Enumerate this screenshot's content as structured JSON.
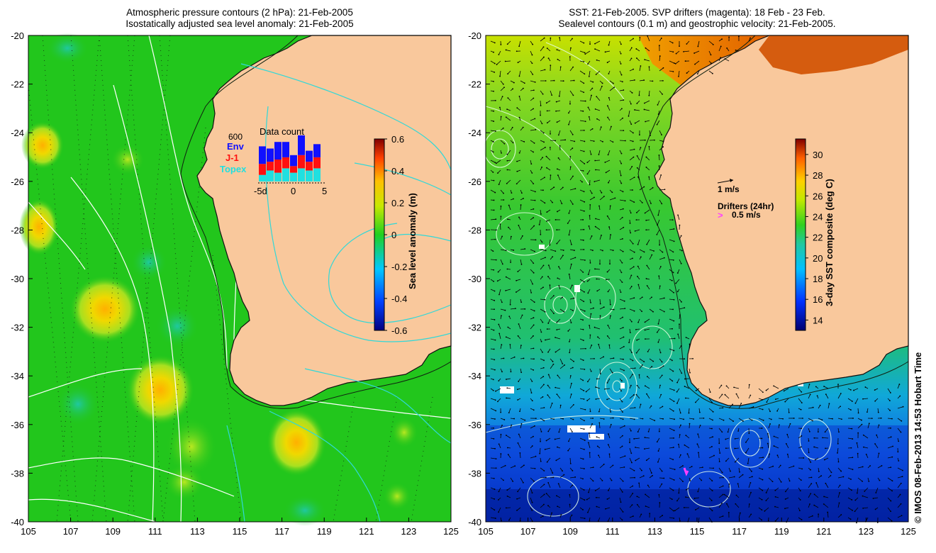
{
  "left_panel": {
    "title_line1": "Atmospheric pressure contours (2 hPa): 21-Feb-2005",
    "title_line2": "Isostatically adjusted sea level anomaly: 21-Feb-2005",
    "x_ticks": [
      "105",
      "107",
      "109",
      "111",
      "113",
      "115",
      "117",
      "119",
      "121",
      "123",
      "125"
    ],
    "y_ticks": [
      "-20",
      "-22",
      "-24",
      "-26",
      "-28",
      "-30",
      "-32",
      "-34",
      "-36",
      "-38",
      "-40"
    ],
    "colorbar": {
      "label": "Sea level anomaly (m)",
      "ticks": [
        "0.6",
        "0.4",
        "0.2",
        "0",
        "-0.2",
        "-0.4",
        "-0.6"
      ],
      "range": [
        -0.6,
        0.6
      ]
    },
    "data_count": {
      "title": "Data count",
      "ymax_label": "600",
      "legend": [
        {
          "name": "Env",
          "color": "#1010ff"
        },
        {
          "name": "J-1",
          "color": "#ff1010"
        },
        {
          "name": "Topex",
          "color": "#20e0e0"
        }
      ],
      "x_labels": [
        "-5d",
        "0",
        "5"
      ],
      "bars": [
        {
          "topex": 0.15,
          "j1": 0.25,
          "env": 0.4
        },
        {
          "topex": 0.25,
          "j1": 0.2,
          "env": 0.3
        },
        {
          "topex": 0.2,
          "j1": 0.3,
          "env": 0.4
        },
        {
          "topex": 0.3,
          "j1": 0.25,
          "env": 0.35
        },
        {
          "topex": 0.2,
          "j1": 0.15,
          "env": 0.25
        },
        {
          "topex": 0.3,
          "j1": 0.3,
          "env": 0.45
        },
        {
          "topex": 0.25,
          "j1": 0.2,
          "env": 0.25
        },
        {
          "topex": 0.3,
          "j1": 0.25,
          "env": 0.3
        }
      ]
    }
  },
  "right_panel": {
    "title_line1": "SST: 21-Feb-2005. SVP drifters (magenta): 18 Feb - 23 Feb.",
    "title_line2": "Sealevel contours (0.1 m) and geostrophic velocity: 21-Feb-2005.",
    "x_ticks": [
      "105",
      "107",
      "109",
      "111",
      "113",
      "115",
      "117",
      "119",
      "121",
      "123",
      "125"
    ],
    "y_ticks": [
      "-20",
      "-22",
      "-24",
      "-26",
      "-28",
      "-30",
      "-32",
      "-34",
      "-36",
      "-38",
      "-40"
    ],
    "colorbar": {
      "label": "3-day SST composite (deg C)",
      "ticks": [
        "30",
        "28",
        "26",
        "24",
        "22",
        "20",
        "18",
        "16",
        "14"
      ],
      "range": [
        13,
        31.5
      ]
    },
    "velocity_scale": "1 m/s",
    "drifters_label": "Drifters (24hr)",
    "drifter_scale": "0.5 m/s"
  },
  "credit": "© IMOS 08-Feb-2013 14:53 Hobart Time",
  "colors": {
    "land": "#f9c89c",
    "ocean_green": "#22c61c",
    "contour_cyan": "#30d8d8",
    "drifter_magenta": "#ff40ff"
  }
}
